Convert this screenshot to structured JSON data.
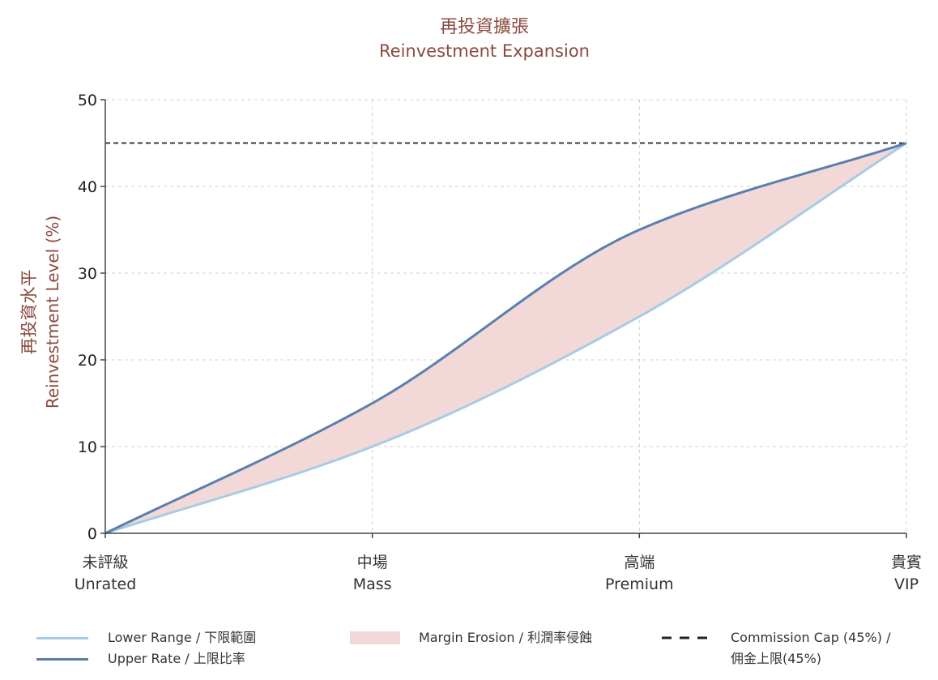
{
  "chart_data": {
    "type": "area",
    "title": "再投資擴張",
    "subtitle": "Reinvestment Expansion",
    "ylabel_zh": "再投資水平",
    "ylabel_en": "Reinvestment Level (%)",
    "categories": [
      {
        "zh": "未評級",
        "en": "Unrated"
      },
      {
        "zh": "中場",
        "en": "Mass"
      },
      {
        "zh": "高端",
        "en": "Premium"
      },
      {
        "zh": "貴賓",
        "en": "VIP"
      }
    ],
    "x": [
      0,
      1,
      2,
      3
    ],
    "ylim": [
      0,
      50
    ],
    "yticks": [
      "0",
      "10",
      "20",
      "30",
      "40",
      "50"
    ],
    "grid": true,
    "series": [
      {
        "name": "Lower Range / 下限範圍",
        "values": [
          0,
          10,
          25,
          45
        ],
        "color": "#a7cbe6"
      },
      {
        "name": "Upper Rate / 上限比率",
        "values": [
          0,
          15,
          35,
          45
        ],
        "color": "#5a7fae"
      }
    ],
    "band": {
      "name": "Margin Erosion / 利潤率侵蝕",
      "color": "#f3d8d8"
    },
    "reference_line": {
      "name_line1": "Commission Cap (45%) /",
      "name_line2": "佣金上限(45%)",
      "value": 45,
      "color": "#222222"
    },
    "legend_placement": "bottom"
  },
  "colors": {
    "title": "#8b4a3f",
    "axis": "#444444",
    "grid": "#d0d0d0"
  }
}
